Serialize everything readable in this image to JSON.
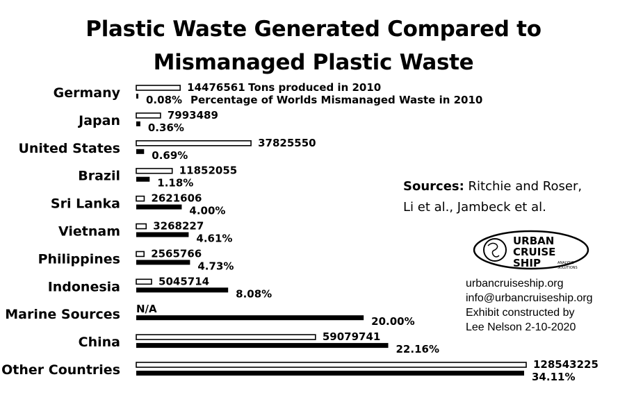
{
  "title": {
    "line1": "Plastic Waste Generated Compared to",
    "line2": "Mismanaged Plastic Waste"
  },
  "chart_data": {
    "type": "bar",
    "orientation": "horizontal",
    "categories": [
      "Germany",
      "Japan",
      "United States",
      "Brazil",
      "Sri Lanka",
      "Vietnam",
      "Philippines",
      "Indonesia",
      "Marine Sources",
      "China",
      "Other Countries"
    ],
    "series": [
      {
        "name": "Tons produced in 2010",
        "values": [
          14476561,
          7993489,
          37825550,
          11852055,
          2621606,
          3268227,
          2565766,
          5045714,
          null,
          59079741,
          128543225
        ],
        "labels": [
          "14476561",
          "7993489",
          "37825550",
          "11852055",
          "2621606",
          "3268227",
          "2565766",
          "5045714",
          "N/A",
          "59079741",
          "128543225"
        ],
        "fill": "#ffffff",
        "stroke": "#000000"
      },
      {
        "name": "Percentage of Worlds Mismanaged Waste in 2010",
        "values": [
          0.08,
          0.36,
          0.69,
          1.18,
          4.0,
          4.61,
          4.73,
          8.08,
          20.0,
          22.16,
          34.11
        ],
        "labels": [
          "0.08%",
          "0.36%",
          "0.69%",
          "1.18%",
          "4.00%",
          "4.61%",
          "4.73%",
          "8.08%",
          "20.00%",
          "22.16%",
          "34.11%"
        ],
        "fill": "#000000",
        "stroke": "#000000"
      }
    ],
    "legend_placement": "inline-first-category",
    "grid": false
  },
  "sources": {
    "label": "Sources:",
    "line1": "Ritchie and Roser,",
    "line2": "Li et al., Jambeck et al."
  },
  "logo": {
    "line1": "URBAN",
    "line2": "CRUISE",
    "line3": "SHIP",
    "tag1": "ANALYSIS",
    "tag2": "SOLUTIONS"
  },
  "contact": {
    "website": "urbancruiseship.org",
    "email": "info@urbancruiseship.org",
    "credit1": "Exhibit constructed by",
    "credit2": "Lee Nelson 2-10-2020"
  }
}
